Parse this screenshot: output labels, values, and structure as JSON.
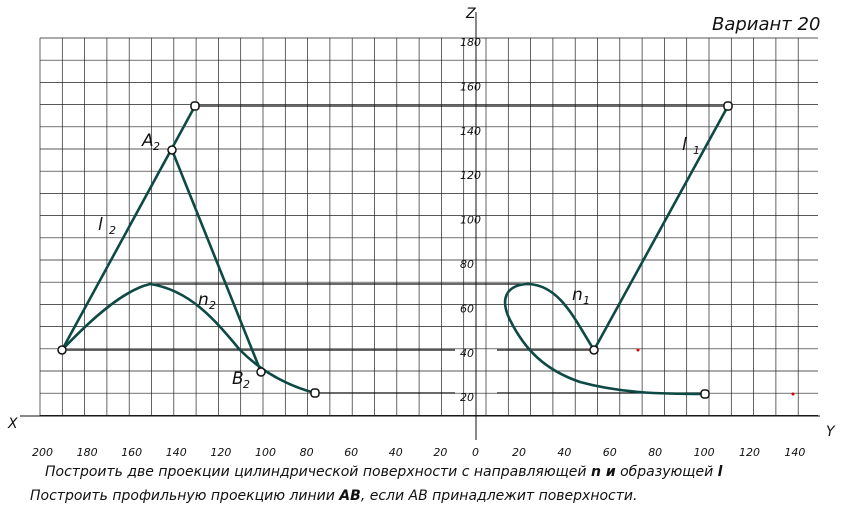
{
  "header": {
    "title": "Вариант 20"
  },
  "axes": {
    "x": "X",
    "y": "Y",
    "z": "Z",
    "z_ticks": [
      "180",
      "160",
      "140",
      "120",
      "100",
      "80",
      "60",
      "40",
      "20"
    ],
    "x_ticks": [
      "200",
      "180",
      "160",
      "140",
      "120",
      "100",
      "80",
      "60",
      "40",
      "20"
    ],
    "origin": "0",
    "y_ticks": [
      "20",
      "40",
      "60",
      "80",
      "100",
      "120",
      "140"
    ]
  },
  "labels": {
    "a2": {
      "text": "A",
      "sub": "2"
    },
    "b2": {
      "text": "B",
      "sub": "2"
    },
    "l2": {
      "text": "l",
      "sub": "2"
    },
    "n2": {
      "text": "n",
      "sub": "2"
    },
    "l1": {
      "text": "l",
      "sub": "1"
    },
    "n1": {
      "text": "n",
      "sub": "1"
    }
  },
  "task": {
    "line1": [
      "Построить две проекции цилиндрической поверхности с  направляющей ",
      "n и",
      "  образующей ",
      "l"
    ],
    "line2": [
      "Построить профильную проекцию линии ",
      "AB",
      ", если AB принадлежит поверхности."
    ]
  }
}
